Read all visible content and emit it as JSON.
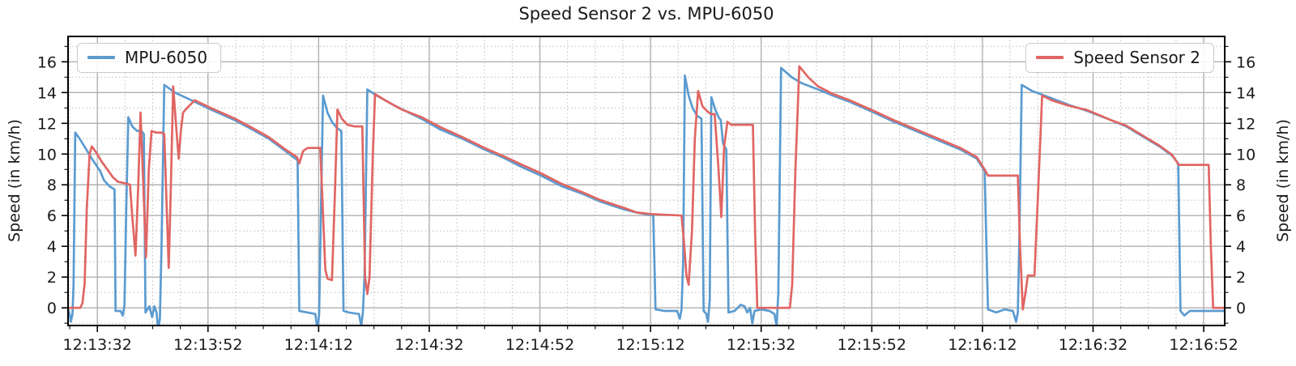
{
  "figure": {
    "title": "Speed Sensor 2 vs. MPU-6050"
  },
  "chart_data": {
    "type": "line",
    "title": "Speed Sensor 2 vs. MPU-6050",
    "xlabel": "",
    "ylabel_left": "Speed (in km/h)",
    "ylabel_right": "Speed (in km/h)",
    "x_unit": "seconds after 12:13:32",
    "x_range": [
      -5.3,
      203.8
    ],
    "y_range": [
      -1.15,
      17.65
    ],
    "y_ticks": [
      0,
      2,
      4,
      6,
      8,
      10,
      12,
      14,
      16
    ],
    "y_minor_step": 1,
    "x_minor_step": 5,
    "grid": {
      "major": true,
      "minor": true,
      "major_color": "#b0b0b0",
      "minor_color": "#c3c3c3"
    },
    "x_ticks": [
      {
        "t": 0,
        "label": "12:13:32"
      },
      {
        "t": 20,
        "label": "12:13:52"
      },
      {
        "t": 40,
        "label": "12:14:12"
      },
      {
        "t": 60,
        "label": "12:14:32"
      },
      {
        "t": 80,
        "label": "12:14:52"
      },
      {
        "t": 100,
        "label": "12:15:12"
      },
      {
        "t": 120,
        "label": "12:15:32"
      },
      {
        "t": 140,
        "label": "12:15:52"
      },
      {
        "t": 160,
        "label": "12:16:12"
      },
      {
        "t": 180,
        "label": "12:16:32"
      },
      {
        "t": 200,
        "label": "12:16:52"
      }
    ],
    "legend": [
      {
        "series": "MPU-6050",
        "position": "upper left"
      },
      {
        "series": "Speed Sensor 2",
        "position": "upper right"
      }
    ],
    "series": [
      {
        "name": "MPU-6050",
        "color": "#5b9bd0",
        "points": [
          [
            -5.3,
            -0.1
          ],
          [
            -5.0,
            -0.4
          ],
          [
            -4.8,
            -0.9
          ],
          [
            -4.5,
            -0.4
          ],
          [
            -4.3,
            1.5
          ],
          [
            -4.0,
            11.4
          ],
          [
            -3.2,
            11.0
          ],
          [
            -2.0,
            10.3
          ],
          [
            -0.8,
            9.6
          ],
          [
            0.5,
            8.9
          ],
          [
            1.2,
            8.3
          ],
          [
            2.2,
            7.9
          ],
          [
            3.1,
            7.7
          ],
          [
            3.3,
            -0.2
          ],
          [
            4.2,
            -0.2
          ],
          [
            4.6,
            -0.5
          ],
          [
            4.9,
            0.2
          ],
          [
            5.2,
            6.0
          ],
          [
            5.6,
            12.4
          ],
          [
            6.3,
            11.8
          ],
          [
            7.2,
            11.5
          ],
          [
            8.0,
            11.5
          ],
          [
            8.4,
            11.3
          ],
          [
            8.7,
            -0.3
          ],
          [
            9.4,
            0.1
          ],
          [
            9.9,
            -0.6
          ],
          [
            10.3,
            0.1
          ],
          [
            10.7,
            -0.3
          ],
          [
            11.0,
            -1.4
          ],
          [
            11.3,
            -0.7
          ],
          [
            11.6,
            4.0
          ],
          [
            12.1,
            14.5
          ],
          [
            14.0,
            14.0
          ],
          [
            17.6,
            13.4
          ],
          [
            20.5,
            12.9
          ],
          [
            24.9,
            12.2
          ],
          [
            28.0,
            11.6
          ],
          [
            31.0,
            11.0
          ],
          [
            34.0,
            10.2
          ],
          [
            36.2,
            9.6
          ],
          [
            36.5,
            -0.2
          ],
          [
            38.0,
            -0.3
          ],
          [
            39.4,
            -0.4
          ],
          [
            39.8,
            -1.5
          ],
          [
            40.1,
            -0.4
          ],
          [
            40.4,
            6.0
          ],
          [
            40.8,
            13.8
          ],
          [
            41.6,
            12.7
          ],
          [
            42.4,
            12.1
          ],
          [
            43.3,
            11.7
          ],
          [
            44.1,
            11.5
          ],
          [
            44.5,
            -0.2
          ],
          [
            45.5,
            -0.3
          ],
          [
            47.3,
            -0.4
          ],
          [
            47.7,
            -1.2
          ],
          [
            48.0,
            -0.3
          ],
          [
            48.3,
            2.0
          ],
          [
            48.8,
            14.2
          ],
          [
            50.5,
            13.8
          ],
          [
            54.0,
            13.1
          ],
          [
            58.6,
            12.3
          ],
          [
            62.0,
            11.6
          ],
          [
            66.0,
            11.0
          ],
          [
            70.0,
            10.3
          ],
          [
            73.2,
            9.8
          ],
          [
            76.5,
            9.2
          ],
          [
            80.2,
            8.6
          ],
          [
            84.0,
            7.9
          ],
          [
            87.8,
            7.4
          ],
          [
            91.0,
            6.9
          ],
          [
            95.2,
            6.4
          ],
          [
            97.5,
            6.2
          ],
          [
            100.5,
            6.0
          ],
          [
            100.9,
            -0.1
          ],
          [
            102.5,
            -0.2
          ],
          [
            104.8,
            -0.2
          ],
          [
            105.3,
            -0.7
          ],
          [
            105.6,
            -0.1
          ],
          [
            105.9,
            3.0
          ],
          [
            106.2,
            15.1
          ],
          [
            106.9,
            13.8
          ],
          [
            107.6,
            13.0
          ],
          [
            108.4,
            12.5
          ],
          [
            109.2,
            12.3
          ],
          [
            109.6,
            -0.2
          ],
          [
            110.1,
            -0.4
          ],
          [
            110.4,
            -0.9
          ],
          [
            110.7,
            0.5
          ],
          [
            111.0,
            13.7
          ],
          [
            111.7,
            12.9
          ],
          [
            112.3,
            12.4
          ],
          [
            112.7,
            12.2
          ],
          [
            113.1,
            10.7
          ],
          [
            113.7,
            10.3
          ],
          [
            114.1,
            -0.3
          ],
          [
            115.2,
            -0.2
          ],
          [
            116.3,
            0.2
          ],
          [
            117.0,
            0.1
          ],
          [
            117.5,
            -0.3
          ],
          [
            118.0,
            0.0
          ],
          [
            118.4,
            -1.0
          ],
          [
            118.8,
            -0.2
          ],
          [
            120.0,
            -0.1
          ],
          [
            121.5,
            -0.2
          ],
          [
            122.4,
            -0.4
          ],
          [
            122.8,
            -1.2
          ],
          [
            123.1,
            1.0
          ],
          [
            123.6,
            15.6
          ],
          [
            125.5,
            15.0
          ],
          [
            127.4,
            14.6
          ],
          [
            130.3,
            14.2
          ],
          [
            133.0,
            13.8
          ],
          [
            136.0,
            13.4
          ],
          [
            140.4,
            12.7
          ],
          [
            144.0,
            12.1
          ],
          [
            148.0,
            11.5
          ],
          [
            152.0,
            10.9
          ],
          [
            156.0,
            10.3
          ],
          [
            159.0,
            9.7
          ],
          [
            160.4,
            8.9
          ],
          [
            161.0,
            -0.1
          ],
          [
            162.5,
            -0.3
          ],
          [
            164.0,
            -0.1
          ],
          [
            165.5,
            -0.2
          ],
          [
            166.1,
            -0.9
          ],
          [
            166.4,
            -0.3
          ],
          [
            166.7,
            5.0
          ],
          [
            167.1,
            14.5
          ],
          [
            169.0,
            14.1
          ],
          [
            172.0,
            13.7
          ],
          [
            175.6,
            13.2
          ],
          [
            179.0,
            12.8
          ],
          [
            183.3,
            12.2
          ],
          [
            186.0,
            11.8
          ],
          [
            189.2,
            11.1
          ],
          [
            192.0,
            10.5
          ],
          [
            194.3,
            9.9
          ],
          [
            195.4,
            9.4
          ],
          [
            195.8,
            -0.2
          ],
          [
            196.5,
            -0.5
          ],
          [
            197.5,
            -0.2
          ],
          [
            200.0,
            -0.2
          ],
          [
            203.8,
            -0.2
          ]
        ]
      },
      {
        "name": "Speed Sensor 2",
        "color": "#e06663",
        "points": [
          [
            -5.3,
            0.0
          ],
          [
            -3.1,
            0.0
          ],
          [
            -2.7,
            0.3
          ],
          [
            -2.3,
            1.6
          ],
          [
            -1.9,
            6.5
          ],
          [
            -1.4,
            10.0
          ],
          [
            -1.0,
            10.5
          ],
          [
            -0.2,
            10.1
          ],
          [
            0.8,
            9.5
          ],
          [
            1.8,
            9.0
          ],
          [
            2.8,
            8.5
          ],
          [
            3.7,
            8.2
          ],
          [
            5.0,
            8.1
          ],
          [
            5.9,
            8.0
          ],
          [
            6.3,
            6.0
          ],
          [
            6.9,
            3.4
          ],
          [
            7.4,
            8.0
          ],
          [
            7.8,
            12.7
          ],
          [
            8.3,
            8.0
          ],
          [
            8.8,
            3.3
          ],
          [
            9.3,
            9.0
          ],
          [
            9.8,
            11.5
          ],
          [
            10.6,
            11.4
          ],
          [
            11.6,
            11.4
          ],
          [
            12.1,
            11.3
          ],
          [
            12.9,
            2.6
          ],
          [
            13.3,
            8.0
          ],
          [
            13.7,
            14.4
          ],
          [
            14.2,
            12.0
          ],
          [
            14.7,
            9.7
          ],
          [
            15.1,
            11.5
          ],
          [
            15.5,
            12.7
          ],
          [
            16.5,
            13.1
          ],
          [
            17.6,
            13.5
          ],
          [
            20.5,
            13.0
          ],
          [
            24.9,
            12.3
          ],
          [
            28.0,
            11.7
          ],
          [
            31.0,
            11.1
          ],
          [
            34.0,
            10.3
          ],
          [
            36.1,
            9.8
          ],
          [
            36.5,
            9.4
          ],
          [
            37.2,
            10.2
          ],
          [
            38.0,
            10.4
          ],
          [
            40.3,
            10.4
          ],
          [
            40.7,
            7.0
          ],
          [
            41.2,
            2.5
          ],
          [
            41.6,
            1.9
          ],
          [
            42.4,
            1.8
          ],
          [
            42.9,
            7.0
          ],
          [
            43.4,
            12.9
          ],
          [
            44.2,
            12.3
          ],
          [
            45.2,
            11.9
          ],
          [
            46.5,
            11.8
          ],
          [
            47.9,
            11.8
          ],
          [
            48.4,
            2.0
          ],
          [
            48.8,
            0.9
          ],
          [
            49.2,
            2.0
          ],
          [
            49.8,
            10.0
          ],
          [
            50.2,
            13.9
          ],
          [
            52.0,
            13.5
          ],
          [
            55.0,
            12.9
          ],
          [
            58.6,
            12.4
          ],
          [
            62.0,
            11.75
          ],
          [
            66.0,
            11.1
          ],
          [
            70.0,
            10.4
          ],
          [
            73.2,
            9.9
          ],
          [
            76.5,
            9.35
          ],
          [
            80.2,
            8.75
          ],
          [
            84.0,
            8.05
          ],
          [
            87.8,
            7.5
          ],
          [
            91.0,
            7.0
          ],
          [
            95.2,
            6.5
          ],
          [
            97.5,
            6.2
          ],
          [
            100.0,
            6.1
          ],
          [
            103.0,
            6.05
          ],
          [
            105.6,
            6.0
          ],
          [
            106.0,
            4.5
          ],
          [
            106.5,
            2.1
          ],
          [
            106.9,
            1.5
          ],
          [
            107.5,
            5.0
          ],
          [
            108.0,
            11.0
          ],
          [
            108.6,
            14.1
          ],
          [
            109.4,
            13.1
          ],
          [
            110.2,
            12.8
          ],
          [
            110.9,
            12.6
          ],
          [
            111.6,
            12.6
          ],
          [
            112.3,
            9.0
          ],
          [
            112.8,
            5.9
          ],
          [
            113.3,
            10.5
          ],
          [
            113.9,
            12.1
          ],
          [
            114.6,
            11.9
          ],
          [
            116.0,
            11.9
          ],
          [
            118.5,
            11.9
          ],
          [
            118.9,
            5.0
          ],
          [
            119.3,
            0.0
          ],
          [
            121.0,
            0.0
          ],
          [
            123.0,
            0.0
          ],
          [
            125.2,
            0.0
          ],
          [
            125.6,
            1.5
          ],
          [
            126.2,
            9.0
          ],
          [
            126.9,
            15.7
          ],
          [
            128.5,
            15.0
          ],
          [
            130.3,
            14.4
          ],
          [
            133.0,
            13.9
          ],
          [
            136.0,
            13.5
          ],
          [
            140.4,
            12.8
          ],
          [
            144.0,
            12.2
          ],
          [
            148.0,
            11.6
          ],
          [
            152.0,
            11.0
          ],
          [
            156.0,
            10.4
          ],
          [
            159.0,
            9.8
          ],
          [
            160.4,
            9.0
          ],
          [
            161.0,
            8.6
          ],
          [
            164.0,
            8.6
          ],
          [
            166.4,
            8.6
          ],
          [
            166.8,
            4.0
          ],
          [
            167.3,
            -0.1
          ],
          [
            167.8,
            1.0
          ],
          [
            168.2,
            2.1
          ],
          [
            169.4,
            2.1
          ],
          [
            170.0,
            7.0
          ],
          [
            170.8,
            13.8
          ],
          [
            172.5,
            13.5
          ],
          [
            175.6,
            13.15
          ],
          [
            179.0,
            12.85
          ],
          [
            183.3,
            12.2
          ],
          [
            186.0,
            11.85
          ],
          [
            189.2,
            11.15
          ],
          [
            192.0,
            10.55
          ],
          [
            194.3,
            9.95
          ],
          [
            195.5,
            9.3
          ],
          [
            198.0,
            9.3
          ],
          [
            200.9,
            9.3
          ],
          [
            201.3,
            4.0
          ],
          [
            201.7,
            0.0
          ],
          [
            202.5,
            0.0
          ],
          [
            203.8,
            0.0
          ]
        ]
      }
    ]
  }
}
